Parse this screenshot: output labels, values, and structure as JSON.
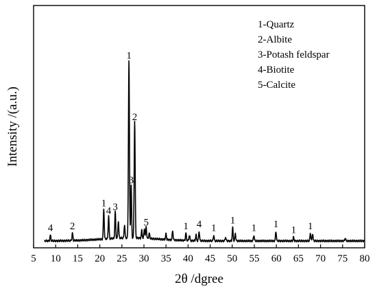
{
  "chart_data": {
    "type": "line",
    "xlabel": "2θ /dgree",
    "ylabel": "Intensity /(a.u.)",
    "xlim": [
      5,
      80
    ],
    "xticks": [
      5,
      10,
      15,
      20,
      25,
      30,
      35,
      40,
      45,
      50,
      55,
      60,
      65,
      70,
      75,
      80
    ],
    "y_ticks_shown": false,
    "grid": false,
    "legend_position": "top-right",
    "legend": [
      "1-Quartz",
      "2-Albite",
      "3-Potash feldspar",
      "4-Biotite",
      "5-Calcite"
    ],
    "series": [
      {
        "peaks": [
          {
            "x": 8.8,
            "y": 3,
            "label": "4"
          },
          {
            "x": 13.8,
            "y": 4,
            "label": "2"
          },
          {
            "x": 20.9,
            "y": 16,
            "label": "1"
          },
          {
            "x": 22.0,
            "y": 12,
            "label": "4"
          },
          {
            "x": 23.5,
            "y": 14,
            "label": "3"
          },
          {
            "x": 24.2,
            "y": 9,
            "label": ""
          },
          {
            "x": 25.6,
            "y": 7,
            "label": ""
          },
          {
            "x": 26.6,
            "y": 93,
            "label": "1"
          },
          {
            "x": 27.1,
            "y": 28,
            "label": "3"
          },
          {
            "x": 27.9,
            "y": 61,
            "label": "2"
          },
          {
            "x": 29.5,
            "y": 4,
            "label": ""
          },
          {
            "x": 30.1,
            "y": 5,
            "label": ""
          },
          {
            "x": 30.5,
            "y": 6,
            "label": "5"
          },
          {
            "x": 31.2,
            "y": 3,
            "label": ""
          },
          {
            "x": 35.0,
            "y": 3,
            "label": ""
          },
          {
            "x": 36.5,
            "y": 5,
            "label": ""
          },
          {
            "x": 39.5,
            "y": 4,
            "label": "1"
          },
          {
            "x": 40.3,
            "y": 3,
            "label": ""
          },
          {
            "x": 41.8,
            "y": 3,
            "label": ""
          },
          {
            "x": 42.5,
            "y": 5,
            "label": "4"
          },
          {
            "x": 45.8,
            "y": 3,
            "label": "1"
          },
          {
            "x": 48.5,
            "y": 2,
            "label": ""
          },
          {
            "x": 50.1,
            "y": 7,
            "label": "1"
          },
          {
            "x": 50.7,
            "y": 4,
            "label": ""
          },
          {
            "x": 54.9,
            "y": 3,
            "label": "1"
          },
          {
            "x": 59.9,
            "y": 5,
            "label": "1"
          },
          {
            "x": 63.9,
            "y": 2,
            "label": "1"
          },
          {
            "x": 67.7,
            "y": 4,
            "label": "1"
          },
          {
            "x": 68.2,
            "y": 4,
            "label": ""
          },
          {
            "x": 75.6,
            "y": 1.5,
            "label": ""
          }
        ]
      }
    ]
  }
}
